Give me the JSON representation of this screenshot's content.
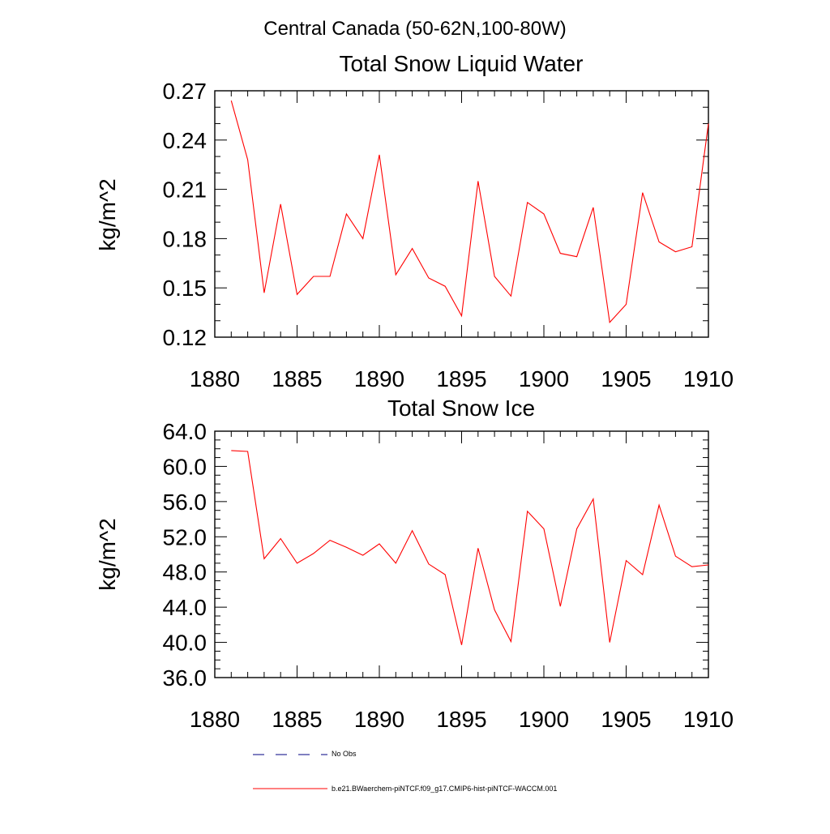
{
  "figure": {
    "main_title": "Central Canada (50-62N,100-80W)"
  },
  "chart_data": [
    {
      "type": "line",
      "title": "Total Snow Liquid Water",
      "ylabel": "kg/m^2",
      "xlabel": "",
      "xlim": [
        1880,
        1910
      ],
      "ylim": [
        0.12,
        0.27
      ],
      "xticks": [
        1880,
        1885,
        1890,
        1895,
        1900,
        1905,
        1910
      ],
      "xtick_labels": [
        "1880",
        "1885",
        "1890",
        "1895",
        "1900",
        "1905",
        "1910"
      ],
      "yticks": [
        0.12,
        0.15,
        0.18,
        0.21,
        0.24,
        0.27
      ],
      "ytick_labels": [
        "0.12",
        "0.15",
        "0.18",
        "0.21",
        "0.24",
        "0.27"
      ],
      "grid": false,
      "series": [
        {
          "name": "b.e21.BWaerchem-piNTCF.f09_g17.CMIP6-hist-piNTCF-WACCM.001",
          "color": "#ff0000",
          "x": [
            1881,
            1882,
            1883,
            1884,
            1885,
            1886,
            1887,
            1888,
            1889,
            1890,
            1891,
            1892,
            1893,
            1894,
            1895,
            1896,
            1897,
            1898,
            1899,
            1900,
            1901,
            1902,
            1903,
            1904,
            1905,
            1906,
            1907,
            1908,
            1909,
            1910
          ],
          "values": [
            0.264,
            0.228,
            0.147,
            0.201,
            0.146,
            0.157,
            0.157,
            0.195,
            0.18,
            0.231,
            0.158,
            0.174,
            0.156,
            0.151,
            0.133,
            0.215,
            0.157,
            0.145,
            0.202,
            0.195,
            0.171,
            0.169,
            0.199,
            0.129,
            0.14,
            0.208,
            0.178,
            0.172,
            0.175,
            0.25
          ]
        }
      ]
    },
    {
      "type": "line",
      "title": "Total Snow Ice",
      "ylabel": "kg/m^2",
      "xlabel": "",
      "xlim": [
        1880,
        1910
      ],
      "ylim": [
        36.0,
        64.0
      ],
      "xticks": [
        1880,
        1885,
        1890,
        1895,
        1900,
        1905,
        1910
      ],
      "xtick_labels": [
        "1880",
        "1885",
        "1890",
        "1895",
        "1900",
        "1905",
        "1910"
      ],
      "yticks": [
        36,
        40,
        44,
        48,
        52,
        56,
        60,
        64
      ],
      "ytick_labels": [
        "36.0",
        "40.0",
        "44.0",
        "48.0",
        "52.0",
        "56.0",
        "60.0",
        "64.0"
      ],
      "grid": false,
      "series": [
        {
          "name": "b.e21.BWaerchem-piNTCF.f09_g17.CMIP6-hist-piNTCF-WACCM.001",
          "color": "#ff0000",
          "x": [
            1881,
            1882,
            1883,
            1884,
            1885,
            1886,
            1887,
            1888,
            1889,
            1890,
            1891,
            1892,
            1893,
            1894,
            1895,
            1896,
            1897,
            1898,
            1899,
            1900,
            1901,
            1902,
            1903,
            1904,
            1905,
            1906,
            1907,
            1908,
            1909,
            1910
          ],
          "values": [
            61.8,
            61.7,
            49.5,
            51.8,
            49.0,
            50.1,
            51.6,
            50.8,
            49.9,
            51.2,
            49.0,
            52.7,
            48.9,
            47.7,
            39.7,
            50.7,
            43.7,
            40.1,
            54.9,
            52.9,
            44.1,
            52.9,
            56.3,
            40.0,
            49.3,
            47.7,
            55.6,
            49.8,
            48.6,
            48.8
          ]
        }
      ]
    }
  ],
  "legend": {
    "items": [
      {
        "label": "No Obs",
        "color": "#000080",
        "style": "dashed"
      },
      {
        "label": "b.e21.BWaerchem-piNTCF.f09_g17.CMIP6-hist-piNTCF-WACCM.001",
        "color": "#ff0000",
        "style": "solid"
      }
    ]
  }
}
